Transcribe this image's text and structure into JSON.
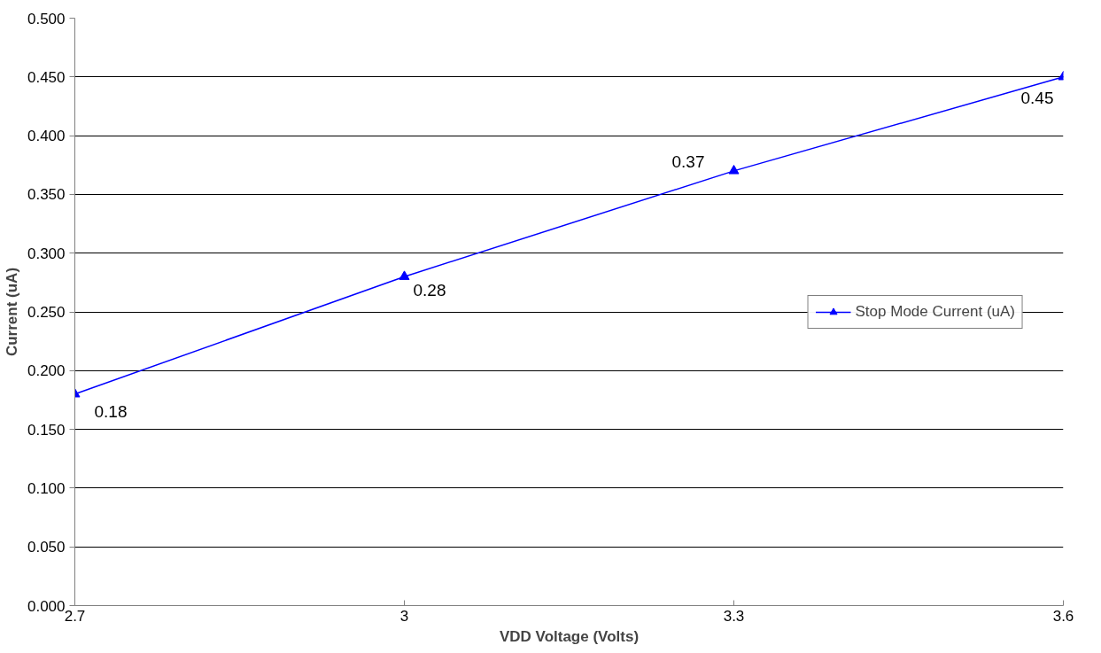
{
  "chart_data": {
    "type": "line",
    "xlabel": "VDD Voltage (Volts)",
    "ylabel": "Current (uA)",
    "x": [
      2.7,
      3,
      3.3,
      3.6
    ],
    "series": [
      {
        "name": "Stop Mode Current (uA)",
        "color": "#0000ff",
        "values": [
          0.18,
          0.28,
          0.37,
          0.45
        ]
      }
    ],
    "xlim": [
      2.7,
      3.6
    ],
    "xticks": [
      2.7,
      3,
      3.3,
      3.6
    ],
    "ylim": [
      0,
      0.5
    ],
    "yticks": [
      {
        "value": 0,
        "label": "0.000"
      },
      {
        "value": 0.05,
        "label": "0.050"
      },
      {
        "value": 0.1,
        "label": "0.100"
      },
      {
        "value": 0.15,
        "label": "0.150"
      },
      {
        "value": 0.2,
        "label": "0.200"
      },
      {
        "value": 0.25,
        "label": "0.250"
      },
      {
        "value": 0.3,
        "label": "0.300"
      },
      {
        "value": 0.35,
        "label": "0.350"
      },
      {
        "value": 0.4,
        "label": "0.400"
      },
      {
        "value": 0.45,
        "label": "0.450"
      },
      {
        "value": 0.5,
        "label": "0.500"
      }
    ],
    "grid": "y",
    "legend": "right",
    "marker": "triangle",
    "line_style": "solid",
    "data_labels": true
  }
}
